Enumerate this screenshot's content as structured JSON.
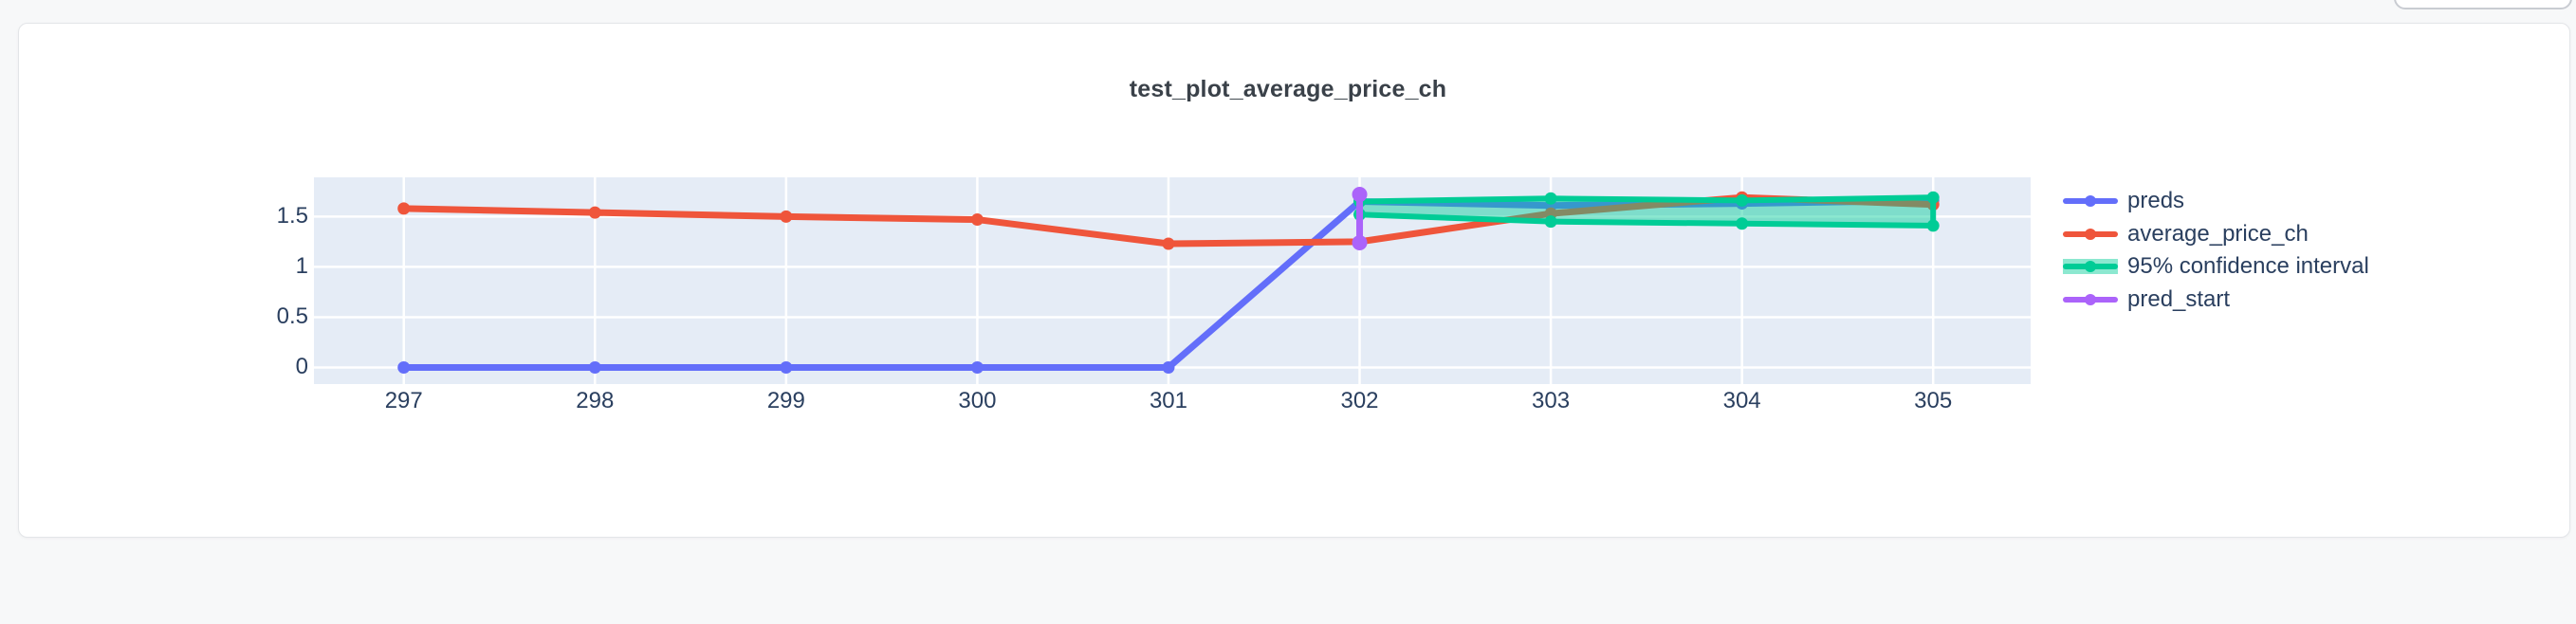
{
  "page": {
    "background_color": "#f7f8f9",
    "card_background": "#ffffff",
    "text_color": "#2a3f5f",
    "title_color": "#3a4149"
  },
  "top_button": {
    "note": "partially visible button cut off at top edge, no visible label"
  },
  "chart_data": {
    "type": "line",
    "title": "test_plot_average_price_ch",
    "xlabel": "",
    "ylabel": "",
    "plot_bgcolor": "#e5ecf6",
    "grid": true,
    "grid_color": "#ffffff",
    "xlim": [
      296.53,
      305.51
    ],
    "ylim": [
      -0.165,
      1.89
    ],
    "x_ticks": [
      297,
      298,
      299,
      300,
      301,
      302,
      303,
      304,
      305
    ],
    "y_ticks": [
      0,
      0.5,
      1,
      1.5
    ],
    "legend_position": "right",
    "series": [
      {
        "name": "preds",
        "kind": "line_markers",
        "color": "#636efa",
        "x": [
          297,
          298,
          299,
          300,
          301,
          302,
          303,
          304,
          305
        ],
        "y": [
          0,
          0,
          0,
          0,
          0,
          1.65,
          1.61,
          1.63,
          1.66
        ]
      },
      {
        "name": "average_price_ch",
        "kind": "line_markers",
        "color": "#ef553b",
        "x": [
          297,
          298,
          299,
          300,
          301,
          302,
          303,
          304,
          305
        ],
        "y": [
          1.58,
          1.54,
          1.5,
          1.47,
          1.23,
          1.25,
          1.53,
          1.69,
          1.62
        ]
      },
      {
        "name": "95% confidence interval",
        "kind": "band",
        "color": "#00cc96",
        "fill": "rgba(0,204,150,0.45)",
        "x": [
          302,
          303,
          304,
          305
        ],
        "y_upper": [
          1.65,
          1.68,
          1.66,
          1.69
        ],
        "y_lower": [
          1.52,
          1.45,
          1.43,
          1.41
        ]
      },
      {
        "name": "pred_start",
        "kind": "vertical_segment",
        "color": "#ab63fa",
        "x": [
          302,
          302
        ],
        "y": [
          1.24,
          1.72
        ]
      }
    ]
  }
}
